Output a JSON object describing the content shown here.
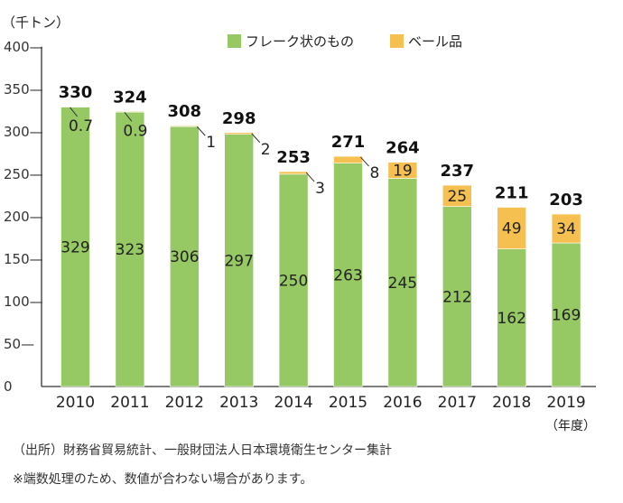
{
  "chart_data": {
    "type": "bar",
    "stacked": true,
    "ylabel": "（千トン）",
    "xlabel": "（年度）",
    "ylim": [
      0,
      400
    ],
    "yticks": [
      "0",
      "50—",
      "100—",
      "150—",
      "200—",
      "250—",
      "300—",
      "350—",
      "400—"
    ],
    "ytick_values": [
      0,
      50,
      100,
      150,
      200,
      250,
      300,
      350,
      400
    ],
    "categories": [
      "2010",
      "2011",
      "2012",
      "2013",
      "2014",
      "2015",
      "2016",
      "2017",
      "2018",
      "2019"
    ],
    "series": [
      {
        "name": "フレーク状のもの",
        "color": "#96c864",
        "values": [
          329,
          323,
          306,
          297,
          250,
          263,
          245,
          212,
          162,
          169
        ],
        "labels": [
          "329",
          "323",
          "306",
          "297",
          "250",
          "263",
          "245",
          "212",
          "162",
          "169"
        ]
      },
      {
        "name": "ベール品",
        "color": "#f5c050",
        "values": [
          0.7,
          0.9,
          1,
          2,
          3,
          8,
          19,
          25,
          49,
          34
        ],
        "labels": [
          "0.7",
          "0.9",
          "1",
          "2",
          "3",
          "8",
          "19",
          "25",
          "49",
          "34"
        ]
      }
    ],
    "totals": [
      "330",
      "324",
      "308",
      "298",
      "253",
      "271",
      "264",
      "237",
      "211",
      "203"
    ],
    "legend": "top"
  },
  "footnotes": {
    "source": "（出所）財務省貿易統計、一般財団法人日本環境衛生センター集計",
    "note": "※端数処理のため、数値が合わない場合があります。"
  }
}
